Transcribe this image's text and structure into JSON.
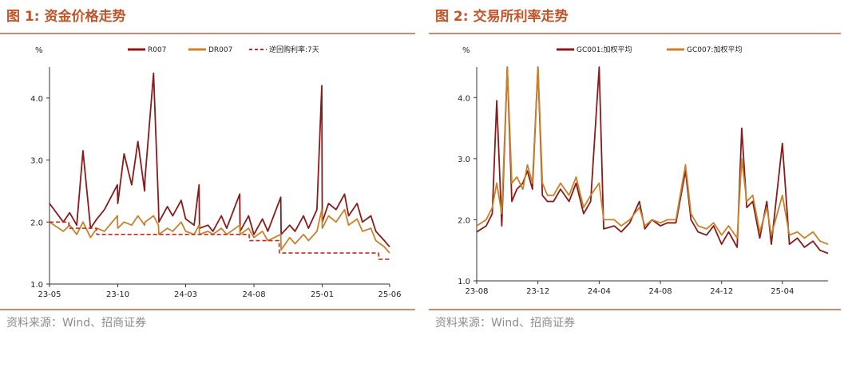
{
  "colors": {
    "accent": "#c0552b",
    "r007": "#8b1a1a",
    "dr007": "#c8822a",
    "policy": "#c8281e",
    "gc001": "#8b1a1a",
    "gc007": "#c8822a"
  },
  "panels": [
    {
      "title": "图 1: 资金价格走势",
      "source": "资料来源：Wind、招商证券"
    },
    {
      "title": "图 2: 交易所利率走势",
      "source": "资料来源：Wind、招商证券"
    }
  ],
  "chart_data": [
    {
      "type": "line",
      "ylabel": "%",
      "ylim": [
        1.0,
        4.5
      ],
      "yticks": [
        "1.0",
        "2.0",
        "3.0",
        "4.0"
      ],
      "xlim": [
        "2023-05",
        "2025-06"
      ],
      "xticks": [
        "23-05",
        "23-10",
        "24-03",
        "24-08",
        "25-01",
        "25-06"
      ],
      "legend_position": "top",
      "series": [
        {
          "name": "R007",
          "x": [
            "2023-05",
            "2023-06",
            "2023-06-15",
            "2023-07",
            "2023-07-15",
            "2023-08",
            "2023-08-15",
            "2023-09",
            "2023-09-30",
            "2023-10",
            "2023-10-15",
            "2023-11",
            "2023-11-15",
            "2023-11-30",
            "2023-12",
            "2023-12-20",
            "2023-12-31",
            "2024-01",
            "2024-01-20",
            "2024-02",
            "2024-02-20",
            "2024-03",
            "2024-03-20",
            "2024-03-31",
            "2024-04",
            "2024-04-20",
            "2024-05",
            "2024-05-20",
            "2024-06",
            "2024-06-30",
            "2024-07",
            "2024-07-20",
            "2024-08",
            "2024-08-20",
            "2024-09",
            "2024-09-30",
            "2024-10",
            "2024-10-20",
            "2024-11",
            "2024-11-20",
            "2024-12",
            "2024-12-20",
            "2024-12-31",
            "2025-01",
            "2025-01-15",
            "2025-02",
            "2025-02-20",
            "2025-03",
            "2025-03-20",
            "2025-04",
            "2025-04-20",
            "2025-05",
            "2025-05-20",
            "2025-06"
          ],
          "y": [
            2.3,
            2.0,
            2.15,
            1.95,
            3.15,
            1.9,
            2.05,
            2.2,
            2.6,
            2.3,
            3.1,
            2.6,
            3.3,
            2.5,
            2.7,
            4.4,
            2.3,
            2.0,
            2.25,
            2.1,
            2.35,
            2.05,
            1.95,
            2.6,
            1.9,
            1.95,
            1.85,
            2.1,
            1.9,
            2.45,
            1.85,
            2.1,
            1.8,
            2.05,
            1.85,
            2.4,
            1.8,
            1.95,
            1.85,
            2.1,
            1.9,
            2.2,
            4.2,
            2.0,
            2.3,
            2.2,
            2.45,
            2.1,
            2.3,
            2.0,
            2.1,
            1.85,
            1.7,
            1.6
          ]
        },
        {
          "name": "DR007",
          "x": [
            "2023-05",
            "2023-06",
            "2023-06-15",
            "2023-07",
            "2023-07-15",
            "2023-08",
            "2023-08-15",
            "2023-09",
            "2023-09-30",
            "2023-10",
            "2023-10-15",
            "2023-11",
            "2023-11-15",
            "2023-11-30",
            "2023-12",
            "2023-12-20",
            "2023-12-31",
            "2024-01",
            "2024-01-20",
            "2024-02",
            "2024-02-20",
            "2024-03",
            "2024-03-20",
            "2024-03-31",
            "2024-04",
            "2024-04-20",
            "2024-05",
            "2024-05-20",
            "2024-06",
            "2024-06-30",
            "2024-07",
            "2024-07-20",
            "2024-08",
            "2024-08-20",
            "2024-09",
            "2024-09-30",
            "2024-10",
            "2024-10-20",
            "2024-11",
            "2024-11-20",
            "2024-12",
            "2024-12-20",
            "2024-12-31",
            "2025-01",
            "2025-01-15",
            "2025-02",
            "2025-02-20",
            "2025-03",
            "2025-03-20",
            "2025-04",
            "2025-04-20",
            "2025-05",
            "2025-05-20",
            "2025-06"
          ],
          "y": [
            2.0,
            1.85,
            1.95,
            1.8,
            2.0,
            1.75,
            1.9,
            1.85,
            2.1,
            1.9,
            2.0,
            1.95,
            2.1,
            1.95,
            2.0,
            2.1,
            1.95,
            1.8,
            1.9,
            1.85,
            2.0,
            1.85,
            1.8,
            1.95,
            1.8,
            1.85,
            1.8,
            1.9,
            1.8,
            1.95,
            1.8,
            1.9,
            1.75,
            1.85,
            1.7,
            1.8,
            1.55,
            1.75,
            1.65,
            1.8,
            1.7,
            1.85,
            2.2,
            1.9,
            2.1,
            2.0,
            2.2,
            1.95,
            2.05,
            1.85,
            1.9,
            1.7,
            1.6,
            1.5
          ]
        },
        {
          "name": "逆回购利率:7天",
          "x": [
            "2023-05",
            "2023-06-13",
            "2023-06-14",
            "2023-08-14",
            "2023-08-15",
            "2024-07-21",
            "2024-07-22",
            "2024-09-26",
            "2024-09-27",
            "2025-05-07",
            "2025-05-08",
            "2025-06"
          ],
          "y": [
            2.0,
            2.0,
            1.9,
            1.9,
            1.8,
            1.8,
            1.7,
            1.7,
            1.5,
            1.5,
            1.4,
            1.4
          ]
        }
      ]
    },
    {
      "type": "line",
      "ylabel": "%",
      "ylim": [
        1.0,
        4.5
      ],
      "yticks": [
        "1.0",
        "2.0",
        "3.0",
        "4.0"
      ],
      "xlim": [
        "2023-08",
        "2025-07"
      ],
      "xticks": [
        "23-08",
        "23-12",
        "24-04",
        "24-08",
        "24-12",
        "25-04"
      ],
      "legend_position": "top",
      "series": [
        {
          "name": "GC001:加权平均",
          "x": [
            "2023-08",
            "2023-08-20",
            "2023-09",
            "2023-09-10",
            "2023-09-20",
            "2023-10",
            "2023-10-10",
            "2023-10-20",
            "2023-11",
            "2023-11-10",
            "2023-11-20",
            "2023-12",
            "2023-12-10",
            "2023-12-20",
            "2024-01",
            "2024-01-15",
            "2024-02",
            "2024-02-15",
            "2024-03",
            "2024-03-15",
            "2024-04",
            "2024-04-10",
            "2024-05",
            "2024-05-15",
            "2024-06",
            "2024-06-20",
            "2024-07",
            "2024-07-15",
            "2024-08",
            "2024-08-15",
            "2024-09",
            "2024-09-20",
            "2024-10",
            "2024-10-15",
            "2024-11",
            "2024-11-15",
            "2024-12",
            "2024-12-15",
            "2025-01",
            "2025-01-10",
            "2025-01-20",
            "2025-02",
            "2025-02-15",
            "2025-03",
            "2025-03-10",
            "2025-04",
            "2025-04-15",
            "2025-05",
            "2025-05-15",
            "2025-06",
            "2025-06-15",
            "2025-07"
          ],
          "y": [
            1.8,
            1.9,
            2.1,
            3.95,
            1.9,
            4.5,
            2.3,
            2.5,
            2.6,
            2.8,
            2.5,
            4.5,
            2.4,
            2.3,
            2.3,
            2.5,
            2.3,
            2.6,
            2.1,
            2.3,
            4.5,
            1.85,
            1.9,
            1.8,
            1.95,
            2.3,
            1.85,
            2.0,
            1.9,
            1.95,
            1.95,
            2.8,
            2.0,
            1.8,
            1.75,
            1.9,
            1.6,
            1.8,
            1.55,
            3.5,
            2.2,
            2.3,
            1.7,
            2.3,
            1.6,
            3.25,
            1.6,
            1.7,
            1.55,
            1.65,
            1.5,
            1.45
          ]
        },
        {
          "name": "GC007:加权平均",
          "x": [
            "2023-08",
            "2023-08-20",
            "2023-09",
            "2023-09-10",
            "2023-09-20",
            "2023-10",
            "2023-10-10",
            "2023-10-20",
            "2023-11",
            "2023-11-10",
            "2023-11-20",
            "2023-12",
            "2023-12-10",
            "2023-12-20",
            "2024-01",
            "2024-01-15",
            "2024-02",
            "2024-02-15",
            "2024-03",
            "2024-03-15",
            "2024-04",
            "2024-04-10",
            "2024-05",
            "2024-05-15",
            "2024-06",
            "2024-06-20",
            "2024-07",
            "2024-07-15",
            "2024-08",
            "2024-08-15",
            "2024-09",
            "2024-09-20",
            "2024-10",
            "2024-10-15",
            "2024-11",
            "2024-11-15",
            "2024-12",
            "2024-12-15",
            "2025-01",
            "2025-01-10",
            "2025-01-20",
            "2025-02",
            "2025-02-15",
            "2025-03",
            "2025-03-10",
            "2025-04",
            "2025-04-15",
            "2025-05",
            "2025-05-15",
            "2025-06",
            "2025-06-15",
            "2025-07"
          ],
          "y": [
            1.9,
            2.0,
            2.2,
            2.6,
            2.1,
            4.5,
            2.6,
            2.7,
            2.5,
            2.9,
            2.6,
            4.5,
            2.6,
            2.4,
            2.4,
            2.6,
            2.4,
            2.7,
            2.2,
            2.4,
            2.6,
            2.0,
            2.0,
            1.9,
            2.0,
            2.2,
            1.9,
            2.0,
            1.95,
            2.0,
            2.0,
            2.9,
            2.1,
            1.9,
            1.85,
            1.95,
            1.75,
            1.9,
            1.7,
            3.0,
            2.3,
            2.4,
            1.8,
            2.2,
            1.75,
            2.4,
            1.75,
            1.8,
            1.7,
            1.8,
            1.65,
            1.6
          ]
        }
      ]
    }
  ]
}
